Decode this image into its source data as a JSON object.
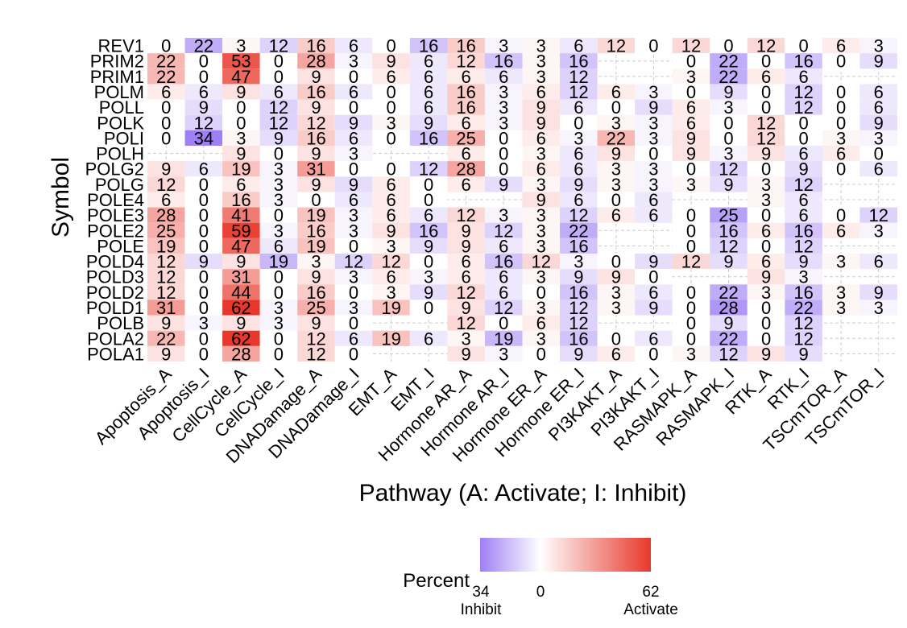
{
  "chart_data": {
    "type": "heatmap",
    "xlabel": "Pathway (A: Activate; I: Inhibit)",
    "ylabel": "Symbol",
    "columns": [
      "Apoptosis_A",
      "Apoptosis_I",
      "CellCycle_A",
      "CellCycle_I",
      "DNADamage_A",
      "DNADamage_I",
      "EMT_A",
      "EMT_I",
      "Hormone AR_A",
      "Hormone AR_I",
      "Hormone ER_A",
      "Hormone ER_I",
      "PI3KAKT_A",
      "PI3KAKT_I",
      "RASMAPK_A",
      "RASMAPK_I",
      "RTK_A",
      "RTK_I",
      "TSCmTOR_A",
      "TSCmTOR_I"
    ],
    "rows": [
      {
        "symbol": "REV1",
        "values": [
          0,
          22,
          3,
          12,
          16,
          6,
          0,
          16,
          16,
          3,
          3,
          6,
          12,
          0,
          12,
          0,
          12,
          0,
          6,
          3
        ]
      },
      {
        "symbol": "PRIM2",
        "values": [
          22,
          0,
          53,
          0,
          28,
          3,
          9,
          6,
          12,
          16,
          3,
          16,
          null,
          null,
          0,
          22,
          0,
          16,
          0,
          9
        ]
      },
      {
        "symbol": "PRIM1",
        "values": [
          22,
          0,
          47,
          0,
          9,
          0,
          6,
          6,
          6,
          6,
          3,
          12,
          null,
          null,
          3,
          22,
          6,
          6,
          null,
          null
        ]
      },
      {
        "symbol": "POLM",
        "values": [
          6,
          6,
          9,
          6,
          16,
          6,
          0,
          6,
          16,
          3,
          6,
          12,
          6,
          3,
          0,
          9,
          0,
          12,
          0,
          6
        ]
      },
      {
        "symbol": "POLL",
        "values": [
          0,
          9,
          0,
          12,
          9,
          0,
          0,
          6,
          16,
          3,
          9,
          6,
          0,
          9,
          6,
          3,
          0,
          12,
          0,
          6
        ]
      },
      {
        "symbol": "POLK",
        "values": [
          0,
          12,
          0,
          12,
          12,
          9,
          3,
          9,
          6,
          3,
          9,
          0,
          3,
          3,
          6,
          0,
          12,
          0,
          0,
          9
        ]
      },
      {
        "symbol": "POLI",
        "values": [
          0,
          34,
          3,
          9,
          16,
          6,
          0,
          16,
          25,
          0,
          6,
          3,
          22,
          3,
          9,
          0,
          12,
          0,
          3,
          3
        ]
      },
      {
        "symbol": "POLH",
        "values": [
          null,
          null,
          9,
          0,
          9,
          3,
          null,
          null,
          6,
          0,
          3,
          6,
          9,
          0,
          9,
          3,
          9,
          6,
          6,
          0
        ]
      },
      {
        "symbol": "POLG2",
        "values": [
          9,
          6,
          19,
          3,
          31,
          0,
          0,
          12,
          28,
          0,
          6,
          6,
          3,
          3,
          0,
          12,
          0,
          9,
          0,
          6
        ]
      },
      {
        "symbol": "POLG",
        "values": [
          12,
          0,
          6,
          3,
          9,
          9,
          6,
          0,
          6,
          9,
          3,
          9,
          3,
          3,
          3,
          9,
          3,
          12,
          null,
          null
        ]
      },
      {
        "symbol": "POLE4",
        "values": [
          6,
          0,
          16,
          3,
          0,
          6,
          6,
          0,
          null,
          null,
          9,
          6,
          0,
          6,
          null,
          null,
          3,
          6,
          null,
          null
        ]
      },
      {
        "symbol": "POLE3",
        "values": [
          28,
          0,
          41,
          0,
          19,
          3,
          6,
          6,
          12,
          3,
          3,
          12,
          6,
          6,
          0,
          25,
          0,
          6,
          0,
          12
        ]
      },
      {
        "symbol": "POLE2",
        "values": [
          25,
          0,
          59,
          3,
          16,
          3,
          9,
          16,
          9,
          12,
          3,
          22,
          null,
          null,
          0,
          16,
          6,
          16,
          6,
          3
        ]
      },
      {
        "symbol": "POLE",
        "values": [
          19,
          0,
          47,
          6,
          19,
          0,
          3,
          9,
          9,
          6,
          3,
          16,
          null,
          null,
          0,
          12,
          0,
          12,
          null,
          null
        ]
      },
      {
        "symbol": "POLD4",
        "values": [
          12,
          9,
          9,
          19,
          3,
          12,
          12,
          0,
          6,
          16,
          12,
          3,
          0,
          9,
          12,
          9,
          6,
          9,
          3,
          6
        ]
      },
      {
        "symbol": "POLD3",
        "values": [
          12,
          0,
          31,
          0,
          9,
          3,
          6,
          3,
          6,
          6,
          3,
          9,
          9,
          0,
          null,
          null,
          9,
          3,
          null,
          null
        ]
      },
      {
        "symbol": "POLD2",
        "values": [
          12,
          0,
          44,
          0,
          16,
          0,
          3,
          9,
          12,
          6,
          0,
          16,
          3,
          6,
          0,
          22,
          3,
          16,
          3,
          9
        ]
      },
      {
        "symbol": "POLD1",
        "values": [
          31,
          0,
          62,
          3,
          25,
          3,
          19,
          0,
          9,
          12,
          3,
          12,
          3,
          9,
          0,
          28,
          0,
          22,
          3,
          3
        ]
      },
      {
        "symbol": "POLB",
        "values": [
          9,
          3,
          9,
          3,
          9,
          0,
          null,
          null,
          12,
          0,
          6,
          12,
          null,
          null,
          0,
          9,
          0,
          12,
          null,
          null
        ]
      },
      {
        "symbol": "POLA2",
        "values": [
          22,
          0,
          62,
          0,
          12,
          6,
          19,
          6,
          3,
          19,
          3,
          16,
          0,
          6,
          0,
          22,
          0,
          12,
          null,
          null
        ]
      },
      {
        "symbol": "POLA1",
        "values": [
          9,
          0,
          28,
          0,
          12,
          0,
          null,
          null,
          9,
          3,
          0,
          9,
          6,
          0,
          3,
          12,
          9,
          9,
          null,
          null
        ]
      }
    ],
    "legend": {
      "title": "Percent",
      "min_label": "34",
      "mid_label": "0",
      "max_label": "62",
      "low_text": "Inhibit",
      "high_text": "Activate",
      "colors": {
        "low": "#9f7ff5",
        "mid": "#ffffff",
        "high": "#e8382b"
      }
    },
    "grid": true,
    "legend_position": "bottom"
  }
}
